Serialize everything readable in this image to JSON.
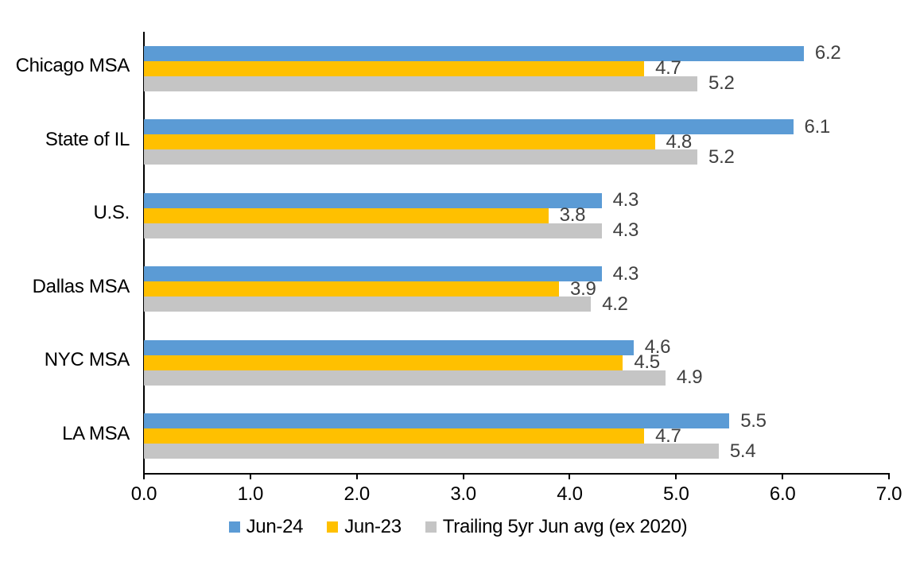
{
  "chart_data": {
    "type": "bar",
    "orientation": "horizontal",
    "title": "",
    "xlabel": "",
    "ylabel": "",
    "categories": [
      "Chicago MSA",
      "State of IL",
      "U.S.",
      "Dallas MSA",
      "NYC MSA",
      "LA MSA"
    ],
    "series": [
      {
        "name": "Jun-24",
        "color": "#5B9BD5",
        "values": [
          6.2,
          6.1,
          4.3,
          4.3,
          4.6,
          5.5
        ]
      },
      {
        "name": "Jun-23",
        "color": "#FFC000",
        "values": [
          4.7,
          4.8,
          3.8,
          3.9,
          4.5,
          4.7
        ]
      },
      {
        "name": "Trailing 5yr Jun avg (ex 2020)",
        "color": "#C5C5C5",
        "values": [
          5.2,
          5.2,
          4.3,
          4.2,
          4.9,
          5.4
        ]
      }
    ],
    "xlim": [
      0.0,
      7.0
    ],
    "x_ticks": [
      "0.0",
      "1.0",
      "2.0",
      "3.0",
      "4.0",
      "5.0",
      "6.0",
      "7.0"
    ],
    "grid": false,
    "legend_position": "bottom",
    "value_labels_shown": true,
    "colors": {
      "axis": "#000000",
      "category_text": "#000000",
      "tick_text": "#000000",
      "value_label_text": "#404040",
      "background": "#FFFFFF"
    }
  }
}
